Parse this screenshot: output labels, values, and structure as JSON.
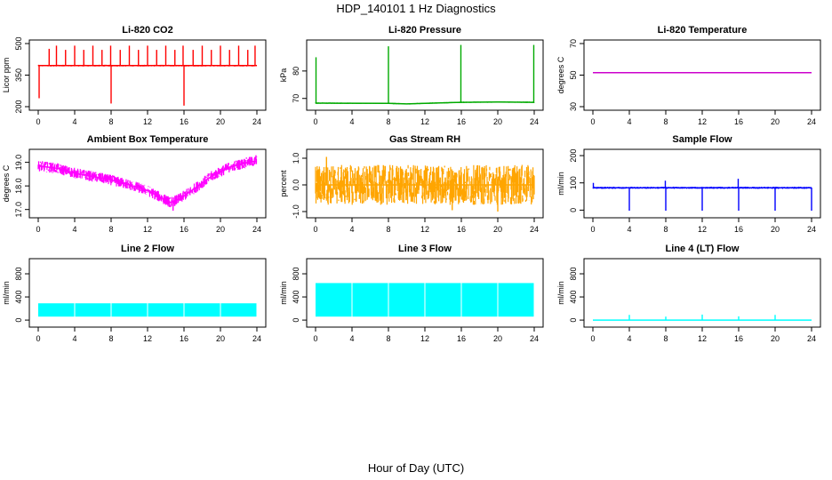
{
  "figure": {
    "title": "HDP_140101  1 Hz Diagnostics",
    "xlabel": "Hour of Day (UTC)"
  },
  "chart_data": [
    {
      "type": "line",
      "title": "Li-820 CO2",
      "ylabel": "Licor ppm",
      "color": "#ff0000",
      "xlim": [
        0,
        24
      ],
      "ylim": [
        200,
        500
      ],
      "yticks": [
        200,
        350,
        500
      ],
      "xticks": [
        0,
        4,
        8,
        12,
        16,
        20,
        24
      ],
      "baseline": [
        [
          0,
          395
        ],
        [
          24,
          395
        ]
      ],
      "band": 8,
      "spikes": [
        [
          0.1,
          240
        ],
        [
          1.2,
          475
        ],
        [
          2.0,
          490
        ],
        [
          3.0,
          470
        ],
        [
          4.0,
          490
        ],
        [
          5.0,
          470
        ],
        [
          6.0,
          490
        ],
        [
          7.0,
          470
        ],
        [
          7.95,
          490
        ],
        [
          8.0,
          215
        ],
        [
          9.0,
          470
        ],
        [
          10.0,
          490
        ],
        [
          11.0,
          470
        ],
        [
          12.0,
          490
        ],
        [
          13.0,
          470
        ],
        [
          14.0,
          490
        ],
        [
          15.0,
          470
        ],
        [
          15.9,
          490
        ],
        [
          16.0,
          205
        ],
        [
          17.0,
          470
        ],
        [
          18.0,
          490
        ],
        [
          19.0,
          470
        ],
        [
          20.0,
          490
        ],
        [
          21.0,
          470
        ],
        [
          22.0,
          490
        ],
        [
          23.0,
          470
        ],
        [
          23.8,
          490
        ]
      ]
    },
    {
      "type": "line",
      "title": "Li-820 Pressure",
      "ylabel": "kPa",
      "color": "#00aa00",
      "xlim": [
        0,
        24
      ],
      "ylim": [
        67,
        90
      ],
      "yticks": [
        70,
        80
      ],
      "xticks": [
        0,
        4,
        8,
        12,
        16,
        20,
        24
      ],
      "baseline": [
        [
          0,
          68.3
        ],
        [
          8,
          68.2
        ],
        [
          10,
          68.0
        ],
        [
          12,
          68.2
        ],
        [
          16,
          68.6
        ],
        [
          20,
          68.7
        ],
        [
          24,
          68.6
        ]
      ],
      "band": 0.5,
      "spikes": [
        [
          0.05,
          85
        ],
        [
          8.0,
          89
        ],
        [
          15.95,
          89.5
        ],
        [
          23.95,
          89.5
        ]
      ]
    },
    {
      "type": "line",
      "title": "Li-820 Temperature",
      "ylabel": "degrees C",
      "color": "#cc00cc",
      "xlim": [
        0,
        24
      ],
      "ylim": [
        30,
        70
      ],
      "yticks": [
        30,
        50,
        70
      ],
      "xticks": [
        0,
        4,
        8,
        12,
        16,
        20,
        24
      ],
      "baseline": [
        [
          0,
          51.5
        ],
        [
          24,
          51.5
        ]
      ],
      "band": 0,
      "spikes": []
    },
    {
      "type": "line",
      "title": "Ambient Box Temperature",
      "ylabel": "degrees C",
      "color": "#ff00ff",
      "xlim": [
        0,
        24
      ],
      "ylim": [
        16.8,
        19.4
      ],
      "yticks": [
        17.0,
        18.0,
        19.0
      ],
      "ytick_labels": [
        "17.0",
        "18.0",
        "19.0"
      ],
      "xticks": [
        0,
        4,
        8,
        12,
        16,
        20,
        24
      ],
      "baseline": [
        [
          0,
          18.85
        ],
        [
          2,
          18.75
        ],
        [
          4,
          18.55
        ],
        [
          6,
          18.4
        ],
        [
          8,
          18.25
        ],
        [
          10,
          18.05
        ],
        [
          12,
          17.8
        ],
        [
          13.5,
          17.5
        ],
        [
          14.5,
          17.3
        ],
        [
          15.5,
          17.45
        ],
        [
          17,
          17.85
        ],
        [
          19,
          18.4
        ],
        [
          21,
          18.8
        ],
        [
          23,
          19.0
        ],
        [
          24,
          19.05
        ]
      ],
      "band": 0.45,
      "spikes": [
        [
          14.8,
          16.95
        ],
        [
          23.9,
          19.3
        ]
      ]
    },
    {
      "type": "line",
      "title": "Gas Stream RH",
      "ylabel": "percent",
      "color": "#ffa500",
      "xlim": [
        0,
        24
      ],
      "ylim": [
        -1.1,
        1.2
      ],
      "yticks": [
        -1.0,
        0.0,
        1.0
      ],
      "ytick_labels": [
        "-1.0",
        "0.0",
        "1.0"
      ],
      "xticks": [
        0,
        4,
        8,
        12,
        16,
        20,
        24
      ],
      "baseline": [
        [
          0,
          0.0
        ],
        [
          24,
          0.0
        ]
      ],
      "band": 1.5,
      "spikes": [
        [
          1.2,
          1.05
        ],
        [
          15.0,
          -0.95
        ],
        [
          20.0,
          -1.0
        ]
      ]
    },
    {
      "type": "line",
      "title": "Sample Flow",
      "ylabel": "ml/min",
      "color": "#0000ff",
      "xlim": [
        0,
        24
      ],
      "ylim": [
        -15,
        210
      ],
      "yticks": [
        0,
        100,
        200
      ],
      "xticks": [
        0,
        4,
        8,
        12,
        16,
        20,
        24
      ],
      "baseline": [
        [
          0,
          82
        ],
        [
          24,
          82
        ]
      ],
      "band": 8,
      "spikes": [
        [
          0.05,
          100
        ],
        [
          4.0,
          -2
        ],
        [
          7.95,
          108
        ],
        [
          8.0,
          -2
        ],
        [
          12.0,
          -2
        ],
        [
          15.95,
          115
        ],
        [
          16.0,
          -2
        ],
        [
          20.0,
          -2
        ],
        [
          24.0,
          -2
        ]
      ]
    },
    {
      "type": "line",
      "title": "Line 2 Flow",
      "ylabel": "ml/min",
      "color": "#00ffff",
      "xlim": [
        0,
        24
      ],
      "ylim": [
        -60,
        1000
      ],
      "yticks": [
        0,
        400,
        800
      ],
      "xticks": [
        0,
        4,
        8,
        12,
        16,
        20,
        24
      ],
      "filled_band": [
        60,
        290
      ],
      "gaps": [
        4,
        8,
        12,
        16,
        20
      ],
      "spikes": []
    },
    {
      "type": "line",
      "title": "Line 3 Flow",
      "ylabel": "ml/min",
      "color": "#00ffff",
      "xlim": [
        0,
        24
      ],
      "ylim": [
        -60,
        1000
      ],
      "yticks": [
        0,
        400,
        800
      ],
      "xticks": [
        0,
        4,
        8,
        12,
        16,
        20,
        24
      ],
      "filled_band": [
        60,
        640
      ],
      "gaps": [
        4,
        8,
        12,
        16,
        20
      ],
      "spikes": []
    },
    {
      "type": "line",
      "title": "Line 4 (LT) Flow",
      "ylabel": "ml/min",
      "color": "#00ffff",
      "xlim": [
        0,
        24
      ],
      "ylim": [
        -60,
        1000
      ],
      "yticks": [
        0,
        400,
        800
      ],
      "xticks": [
        0,
        4,
        8,
        12,
        16,
        20,
        24
      ],
      "baseline": [
        [
          0,
          0
        ],
        [
          24,
          0
        ]
      ],
      "band": 0,
      "spikes": [
        [
          4.0,
          90
        ],
        [
          8.0,
          60
        ],
        [
          12.0,
          95
        ],
        [
          16.0,
          65
        ],
        [
          20.0,
          90
        ]
      ]
    }
  ]
}
